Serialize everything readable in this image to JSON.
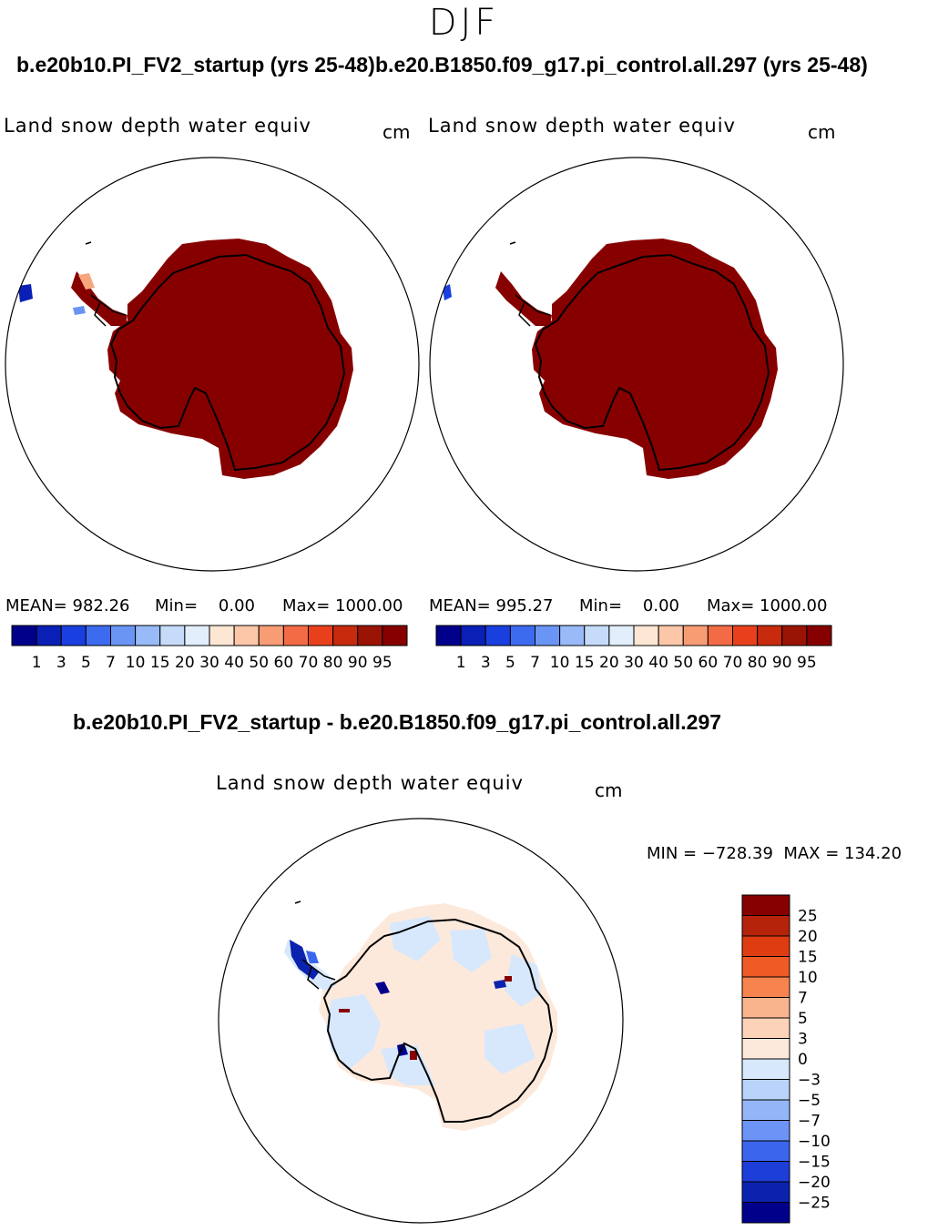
{
  "season": "DJF",
  "left_case_title": "b.e20b10.PI_FV2_startup (yrs 25-48)",
  "right_case_title": "b.e20.B1850.f09_g17.pi_control.all.297 (yrs 25-48)",
  "diff_title": "b.e20b10.PI_FV2_startup - b.e20.B1850.f09_g17.pi_control.all.297",
  "variable": "Land snow depth water equiv",
  "units": "cm",
  "panels": [
    {
      "mean": "MEAN= 982.26",
      "min": "Min=    0.00",
      "max": "Max= 1000.00"
    },
    {
      "mean": "MEAN= 995.27",
      "min": "Min=    0.00",
      "max": "Max= 1000.00"
    }
  ],
  "diff_minmax": "MIN = −728.39  MAX = 134.20",
  "abs_scale": {
    "labels": [
      "1",
      "3",
      "5",
      "7",
      "10",
      "15",
      "20",
      "30",
      "40",
      "50",
      "60",
      "70",
      "80",
      "90",
      "95"
    ],
    "colors": [
      "#00008b",
      "#0a1fb5",
      "#1a3fe0",
      "#3d6bf0",
      "#6a95f5",
      "#99baf8",
      "#c6dbfa",
      "#e2eefc",
      "#fde6d4",
      "#fbc7a8",
      "#f89c74",
      "#f26b45",
      "#e8401c",
      "#c72a0c",
      "#9a1406",
      "#870000"
    ]
  },
  "diff_scale": {
    "labels": [
      "25",
      "20",
      "15",
      "10",
      "7",
      "5",
      "3",
      "0",
      "−3",
      "−5",
      "−7",
      "−10",
      "−15",
      "−20",
      "−25"
    ],
    "colors": [
      "#870000",
      "#b5230a",
      "#e03c12",
      "#f05a24",
      "#f7844e",
      "#fab48d",
      "#fcd3b8",
      "#fde9dc",
      "#d7e8fc",
      "#b9d3fb",
      "#94b6f9",
      "#6c94f6",
      "#3a66ee",
      "#1c3dd8",
      "#0b22ae",
      "#00008b"
    ]
  },
  "land_colors": {
    "full": "#870000",
    "diff_pos": "#fde9dc",
    "diff_neg": "#d7e8fc"
  }
}
